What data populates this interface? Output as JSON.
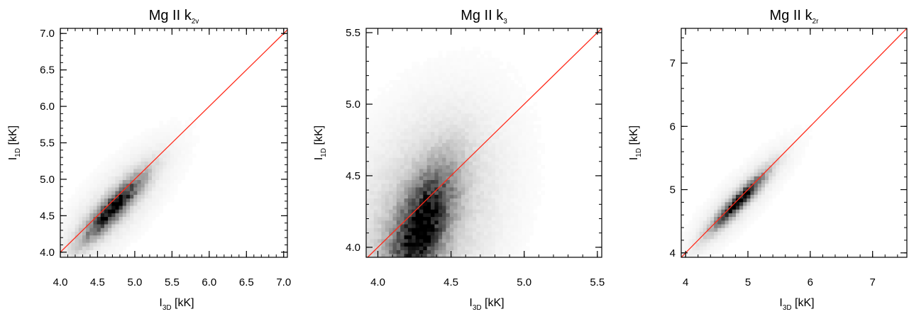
{
  "chart_data": [
    {
      "type": "heatmap",
      "title": {
        "main": "Mg II k",
        "sub": "2v"
      },
      "xlabel": {
        "main": "I",
        "sub": "3D",
        "rest": " [kK]"
      },
      "ylabel": {
        "main": "I",
        "sub": "1D",
        "rest": " [kK]"
      },
      "xlim": [
        4.0,
        7.05
      ],
      "ylim": [
        3.93,
        7.07
      ],
      "xticks": [
        "4.0",
        "4.5",
        "5.0",
        "5.5",
        "6.0",
        "6.5",
        "7.0"
      ],
      "yticks": [
        "4.0",
        "4.5",
        "5.0",
        "5.5",
        "6.0",
        "6.5",
        "7.0"
      ],
      "reference_line": {
        "type": "y=x",
        "color": "#ff2a1a"
      },
      "density": {
        "center": [
          4.72,
          4.62
        ],
        "sigma_along": 0.38,
        "sigma_across": 0.09,
        "angle_deg": 48,
        "halo": 0.55
      }
    },
    {
      "type": "heatmap",
      "title": {
        "main": "Mg II k",
        "sub": "3"
      },
      "xlabel": {
        "main": "I",
        "sub": "3D",
        "rest": " [kK]"
      },
      "ylabel": {
        "main": "I",
        "sub": "1D",
        "rest": " [kK]"
      },
      "xlim": [
        3.92,
        5.53
      ],
      "ylim": [
        3.93,
        5.53
      ],
      "xticks": [
        "4.0",
        "4.5",
        "5.0",
        "5.5"
      ],
      "yticks": [
        "4.0",
        "4.5",
        "5.0",
        "5.5"
      ],
      "reference_line": {
        "type": "y=x",
        "color": "#ff2a1a"
      },
      "density": {
        "center": [
          4.3,
          4.15
        ],
        "sigma_along": 0.28,
        "sigma_across": 0.11,
        "angle_deg": 70,
        "halo": 1.0
      }
    },
    {
      "type": "heatmap",
      "title": {
        "main": "Mg II k",
        "sub": "2r"
      },
      "xlabel": {
        "main": "I",
        "sub": "3D",
        "rest": " [kK]"
      },
      "ylabel": {
        "main": "I",
        "sub": "1D",
        "rest": " [kK]"
      },
      "xlim": [
        3.93,
        7.55
      ],
      "ylim": [
        3.93,
        7.55
      ],
      "xticks": [
        "4",
        "5",
        "6",
        "7"
      ],
      "yticks": [
        "4",
        "5",
        "6",
        "7"
      ],
      "reference_line": {
        "type": "y=x",
        "color": "#ff2a1a"
      },
      "density": {
        "center": [
          4.85,
          4.82
        ],
        "sigma_along": 0.4,
        "sigma_across": 0.07,
        "angle_deg": 46,
        "halo": 0.5
      }
    }
  ]
}
